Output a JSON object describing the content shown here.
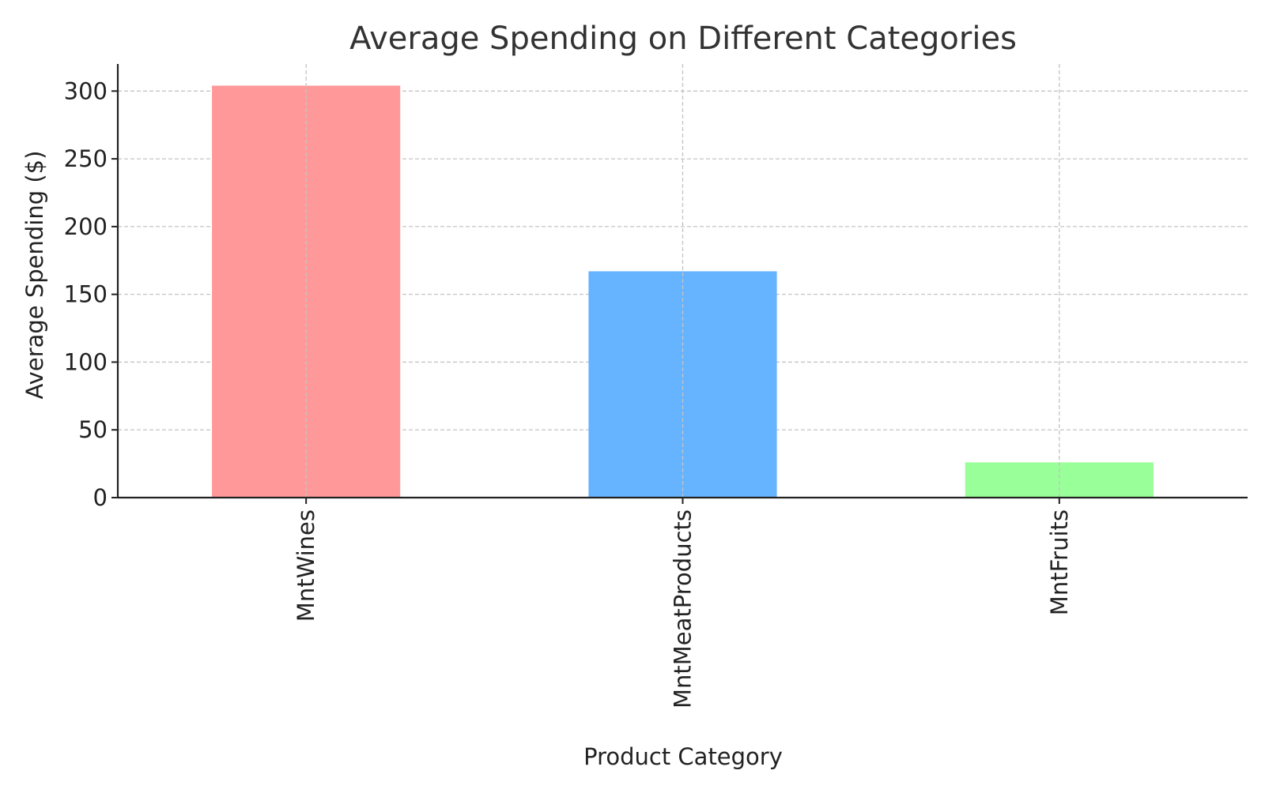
{
  "chart_data": {
    "type": "bar",
    "title": "Average Spending on Different Categories",
    "xlabel": "Product Category",
    "ylabel": "Average Spending ($)",
    "categories": [
      "MntWines",
      "MntMeatProducts",
      "MntFruits"
    ],
    "values": [
      304,
      167,
      26
    ],
    "colors": [
      "#ff9999",
      "#66b3ff",
      "#99ff99"
    ],
    "ylim": [
      0,
      320
    ],
    "yticks": [
      0,
      50,
      100,
      150,
      200,
      250,
      300
    ],
    "ytick_labels": [
      "0",
      "50",
      "100",
      "150",
      "200",
      "250",
      "300"
    ],
    "grid": true,
    "grid_style": "dashed",
    "x_tick_rotation": "vertical",
    "legend": "none"
  }
}
